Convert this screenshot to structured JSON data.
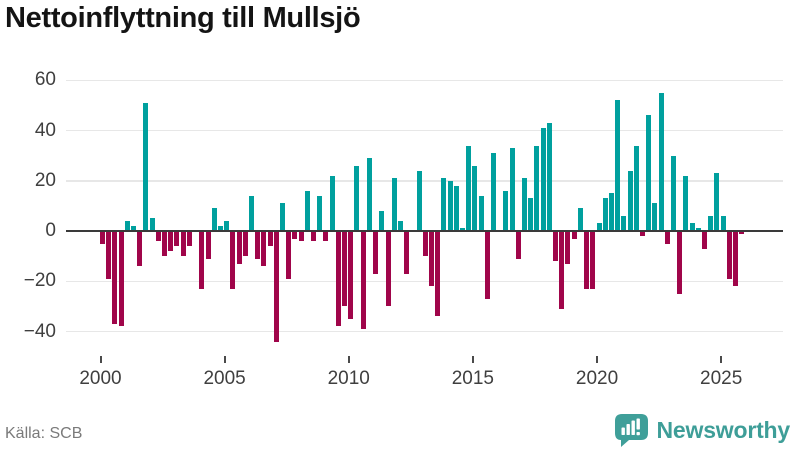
{
  "title": "Nettoinflyttning till Mullsjö",
  "source": "Källa: SCB",
  "logo": {
    "text": "Newsworthy",
    "color": "#3e9e98"
  },
  "chart_data": {
    "type": "bar",
    "title": "Nettoinflyttning till Mullsjö",
    "x_start_year": 2000,
    "frequency": "quarterly",
    "values": [
      -5,
      -19,
      -37,
      -38,
      4,
      2,
      -14,
      51,
      5,
      -4,
      -10,
      -8,
      -6,
      -10,
      -6,
      0,
      -23,
      -11,
      9,
      2,
      4,
      -23,
      -13,
      -10,
      14,
      -11,
      -14,
      -6,
      -44,
      11,
      -19,
      -3,
      -4,
      16,
      -4,
      14,
      -4,
      22,
      -38,
      -30,
      -35,
      26,
      -39,
      29,
      -17,
      8,
      -30,
      21,
      4,
      -17,
      0,
      24,
      -10,
      -22,
      -34,
      21,
      20,
      18,
      1,
      34,
      26,
      14,
      -27,
      31,
      0,
      16,
      33,
      -11,
      21,
      13,
      34,
      41,
      43,
      -12,
      -31,
      -13,
      -3,
      9,
      -23,
      -23,
      3,
      13,
      15,
      52,
      6,
      24,
      34,
      -2,
      46,
      11,
      55,
      -5,
      30,
      -25,
      22,
      3,
      1,
      -7,
      6,
      23,
      6,
      -19,
      -22,
      -1
    ],
    "xticks": [
      2000,
      2005,
      2010,
      2015,
      2020,
      2025
    ],
    "yticks": [
      60,
      40,
      20,
      0,
      -20,
      -40
    ],
    "ylim": [
      -46,
      62
    ],
    "grid": true,
    "positive_color": "#00a09e",
    "negative_color": "#a0054a"
  }
}
